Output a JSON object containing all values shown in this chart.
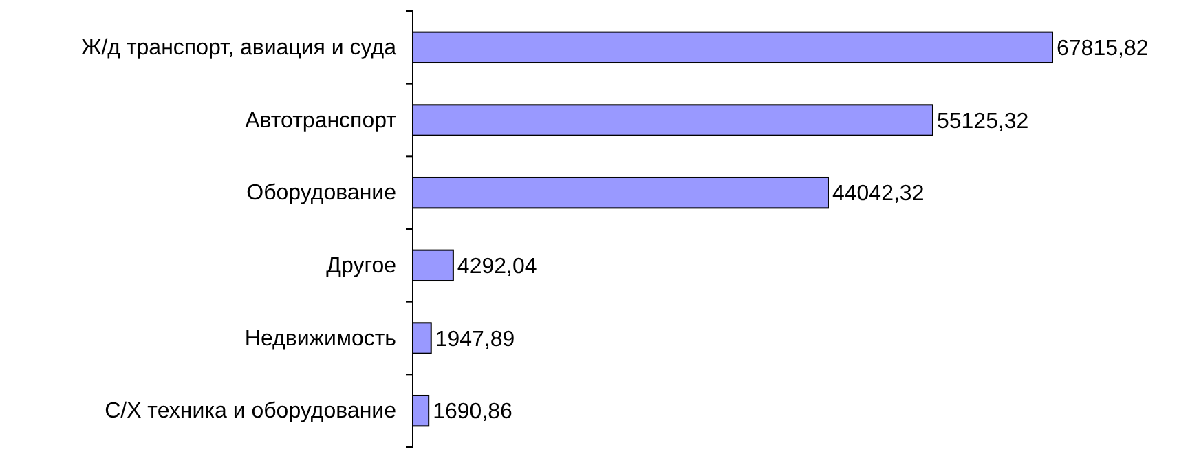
{
  "chart_data": {
    "type": "bar",
    "orientation": "horizontal",
    "categories": [
      "Ж/д транспорт, авиация и суда",
      "Автотранспорт",
      "Оборудование",
      "Другое",
      "Недвижимость",
      "С/Х техника и оборудование"
    ],
    "values": [
      67815.82,
      55125.32,
      44042.32,
      4292.04,
      1947.89,
      1690.86
    ],
    "value_labels": [
      "67815,82",
      "55125,32",
      "44042,32",
      "4292,04",
      "1947,89",
      "1690,86"
    ],
    "color": "#9999ff"
  }
}
